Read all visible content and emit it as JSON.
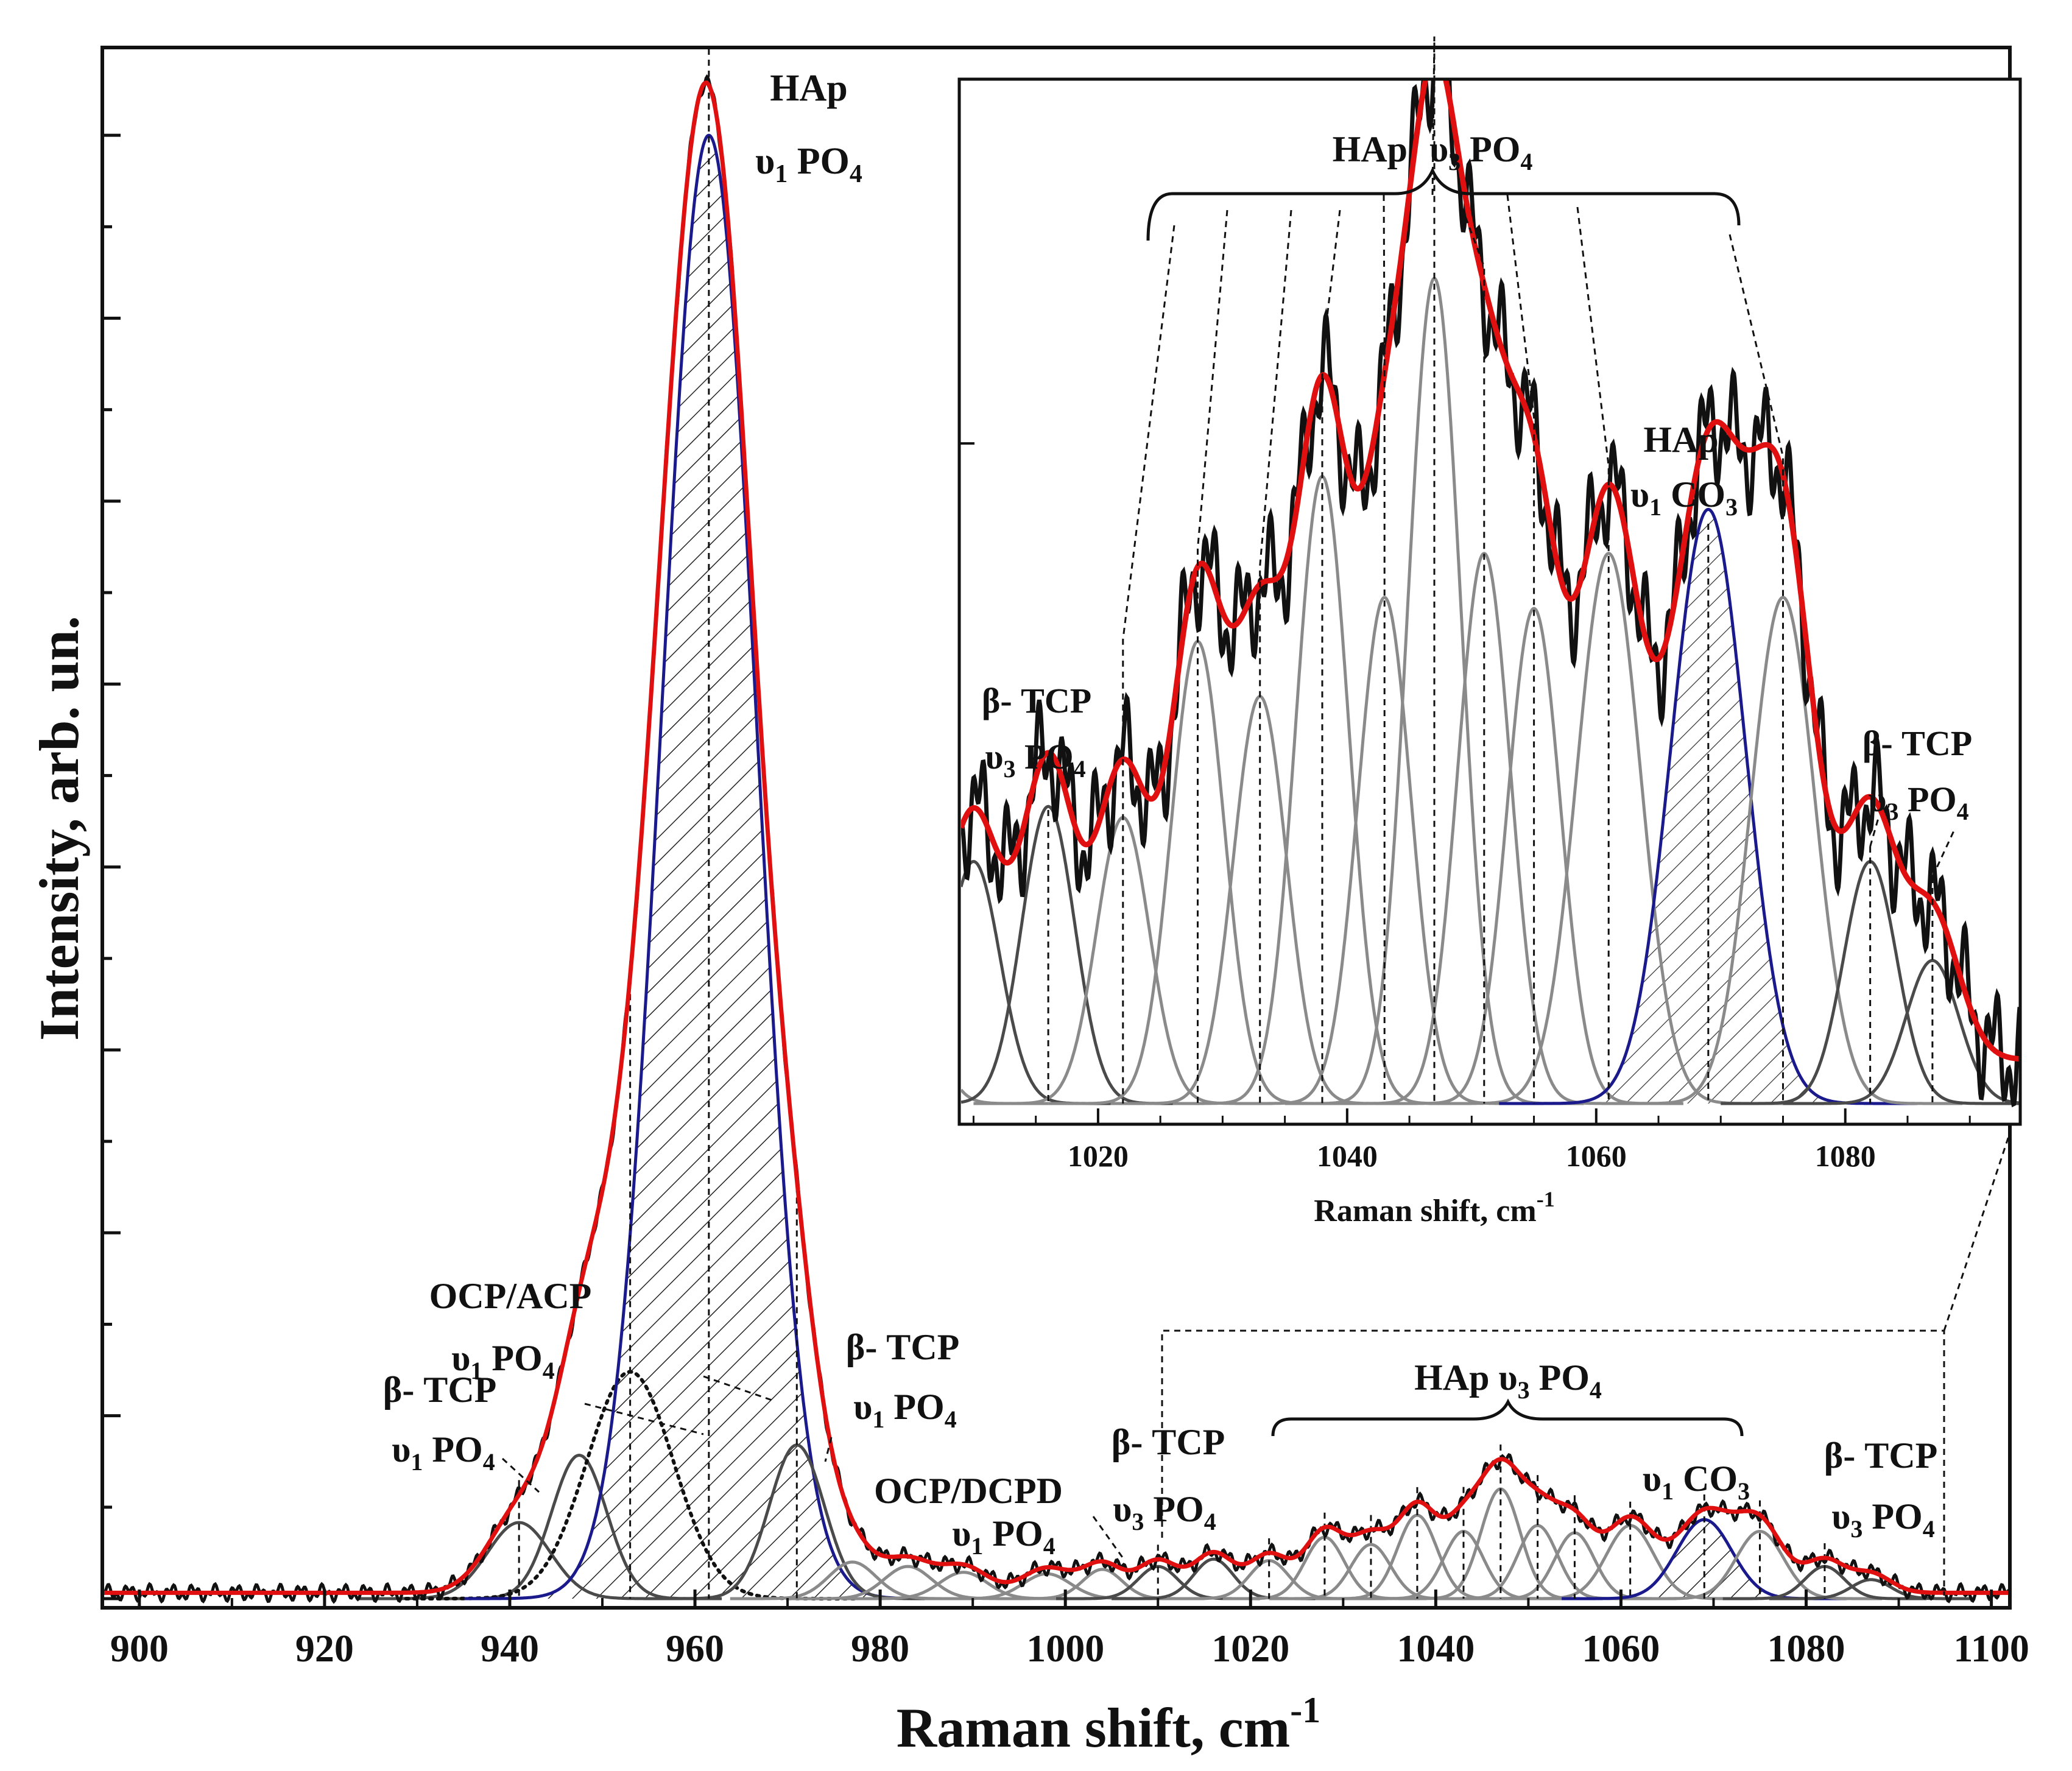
{
  "colors": {
    "total_fit": "#e01010",
    "experimental": "#111111",
    "hap_component": "#1a1a8c",
    "gray_component": "#8a8a8a",
    "dark_component": "#4a4a4a",
    "frame": "#111111"
  },
  "chart_data": [
    {
      "type": "line",
      "title": "",
      "xlabel": "Raman shift, cm",
      "xlabel_sup": "-1",
      "ylabel": "Intensity, arb. un.",
      "xlim": [
        896,
        1102
      ],
      "ylim": [
        0,
        1.06
      ],
      "xticks": [
        "900",
        "920",
        "940",
        "960",
        "980",
        "1000",
        "1020",
        "1040",
        "1060",
        "1080",
        "1100"
      ],
      "components": [
        {
          "name": "β-TCP υ1 PO4",
          "center": 941,
          "amplitude": 0.052,
          "fwhm": 8,
          "color": "dark"
        },
        {
          "name": "β-TCP υ1 PO4",
          "center": 947.5,
          "amplitude": 0.098,
          "fwhm": 7,
          "color": "dark"
        },
        {
          "name": "OCP/ACP υ1 PO4",
          "center": 953,
          "amplitude": 0.155,
          "fwhm": 11,
          "color": "dotted"
        },
        {
          "name": "HAp υ1 PO4",
          "center": 961.5,
          "amplitude": 1.0,
          "fwhm": 12,
          "color": "hap"
        },
        {
          "name": "β-TCP υ1 PO4",
          "center": 971,
          "amplitude": 0.105,
          "fwhm": 7,
          "color": "dark"
        },
        {
          "name": "OCP/DCPD υ1 PO4",
          "center": 977,
          "amplitude": 0.025,
          "fwhm": 6,
          "color": "gray"
        },
        {
          "name": "OCP/DCPD υ1 PO4",
          "center": 983,
          "amplitude": 0.022,
          "fwhm": 6,
          "color": "gray"
        },
        {
          "name": "OCP/DCPD υ1 PO4",
          "center": 989,
          "amplitude": 0.018,
          "fwhm": 6,
          "color": "gray"
        },
        {
          "name": "OCP/DCPD υ1 PO4",
          "center": 998,
          "amplitude": 0.017,
          "fwhm": 6,
          "color": "gray"
        },
        {
          "name": "OCP/DCPD υ1 PO4",
          "center": 1004,
          "amplitude": 0.02,
          "fwhm": 5,
          "color": "gray"
        },
        {
          "name": "β-TCP υ3 PO4",
          "center": 1010,
          "amplitude": 0.022,
          "fwhm": 5,
          "color": "dark"
        },
        {
          "name": "β-TCP υ3 PO4",
          "center": 1016,
          "amplitude": 0.027,
          "fwhm": 5,
          "color": "dark"
        },
        {
          "name": "HAp υ3 PO4",
          "center": 1022,
          "amplitude": 0.026,
          "fwhm": 5,
          "color": "gray"
        },
        {
          "name": "HAp υ3 PO4",
          "center": 1028,
          "amplitude": 0.042,
          "fwhm": 5,
          "color": "gray"
        },
        {
          "name": "HAp υ3 PO4",
          "center": 1033,
          "amplitude": 0.037,
          "fwhm": 5,
          "color": "gray"
        },
        {
          "name": "HAp υ3 PO4",
          "center": 1038,
          "amplitude": 0.057,
          "fwhm": 5,
          "color": "gray"
        },
        {
          "name": "HAp υ3 PO4",
          "center": 1043,
          "amplitude": 0.046,
          "fwhm": 5,
          "color": "gray"
        },
        {
          "name": "HAp υ3 PO4",
          "center": 1047,
          "amplitude": 0.075,
          "fwhm": 5,
          "color": "gray"
        },
        {
          "name": "HAp υ3 PO4",
          "center": 1051,
          "amplitude": 0.05,
          "fwhm": 5,
          "color": "gray"
        },
        {
          "name": "HAp υ3 PO4",
          "center": 1055,
          "amplitude": 0.045,
          "fwhm": 5,
          "color": "gray"
        },
        {
          "name": "HAp υ3 PO4",
          "center": 1061,
          "amplitude": 0.05,
          "fwhm": 6,
          "color": "gray"
        },
        {
          "name": "HAp υ1 CO3",
          "center": 1069,
          "amplitude": 0.054,
          "fwhm": 7,
          "color": "hap"
        },
        {
          "name": "HAp υ3 PO4",
          "center": 1075,
          "amplitude": 0.046,
          "fwhm": 6,
          "color": "gray"
        },
        {
          "name": "β-TCP υ3 PO4",
          "center": 1082,
          "amplitude": 0.022,
          "fwhm": 5,
          "color": "dark"
        },
        {
          "name": "β-TCP υ3 PO4",
          "center": 1087,
          "amplitude": 0.013,
          "fwhm": 5,
          "color": "dark"
        }
      ],
      "annotations": [
        {
          "id": "hap-v1",
          "line1": "HAp",
          "line2_prefix": "υ",
          "line2_sub1": "1",
          "line2_mid": " PO",
          "line2_sub2": "4"
        },
        {
          "id": "ocp-acp",
          "line1": "OCP/ACP",
          "line2_prefix": "υ",
          "line2_sub1": "1",
          "line2_mid": " PO",
          "line2_sub2": "4"
        },
        {
          "id": "btcp-940",
          "line1": "β- TCP",
          "line2_prefix": "υ",
          "line2_sub1": "1",
          "line2_mid": " PO",
          "line2_sub2": "4"
        },
        {
          "id": "btcp-971",
          "line1": "β- TCP",
          "line2_prefix": "υ",
          "line2_sub1": "1",
          "line2_mid": " PO",
          "line2_sub2": "4"
        },
        {
          "id": "ocp-dcpd",
          "line1": "OCP/DCPD",
          "line2_prefix": "υ",
          "line2_sub1": "1",
          "line2_mid": " PO",
          "line2_sub2": "4"
        },
        {
          "id": "btcp-1010",
          "line1": "β- TCP",
          "line2_prefix": "υ",
          "line2_sub1": "3",
          "line2_mid": " PO",
          "line2_sub2": "4"
        },
        {
          "id": "hap-v3-main",
          "text_a": "HAp ",
          "prefix": "υ",
          "sub1": "3",
          "mid": " PO",
          "sub2": "4"
        },
        {
          "id": "co3-main",
          "prefix": "υ",
          "sub1": "1",
          "mid": " CO",
          "sub2": "3"
        },
        {
          "id": "btcp-1082",
          "line1": "β- TCP",
          "line2_prefix": "υ",
          "line2_sub1": "3",
          "line2_mid": " PO",
          "line2_sub2": "4"
        }
      ]
    },
    {
      "type": "line",
      "title": "",
      "xlabel": "Raman shift, cm",
      "xlabel_sup": "-1",
      "xlim": [
        1009,
        1094
      ],
      "ylim": [
        0,
        0.092
      ],
      "xticks": [
        "1020",
        "1040",
        "1060",
        "1080"
      ],
      "annotations": [
        {
          "id": "inset-hap-v3",
          "text_a": "HAp",
          "prefix": "υ",
          "sub1": "3",
          "mid": " PO",
          "sub2": "4"
        },
        {
          "id": "inset-hap-co3",
          "line1": "HAp",
          "line2_prefix": "υ",
          "line2_sub1": "1",
          "line2_mid": " CO",
          "line2_sub2": "3"
        },
        {
          "id": "inset-btcp-left",
          "line1": "β- TCP",
          "line2_prefix": "υ",
          "line2_sub1": "3",
          "line2_mid": " PO",
          "line2_sub2": "4"
        },
        {
          "id": "inset-btcp-right",
          "line1": "β- TCP",
          "line2_prefix": "υ",
          "line2_sub1": "3",
          "line2_mid": " PO",
          "line2_sub2": "4"
        }
      ]
    }
  ]
}
